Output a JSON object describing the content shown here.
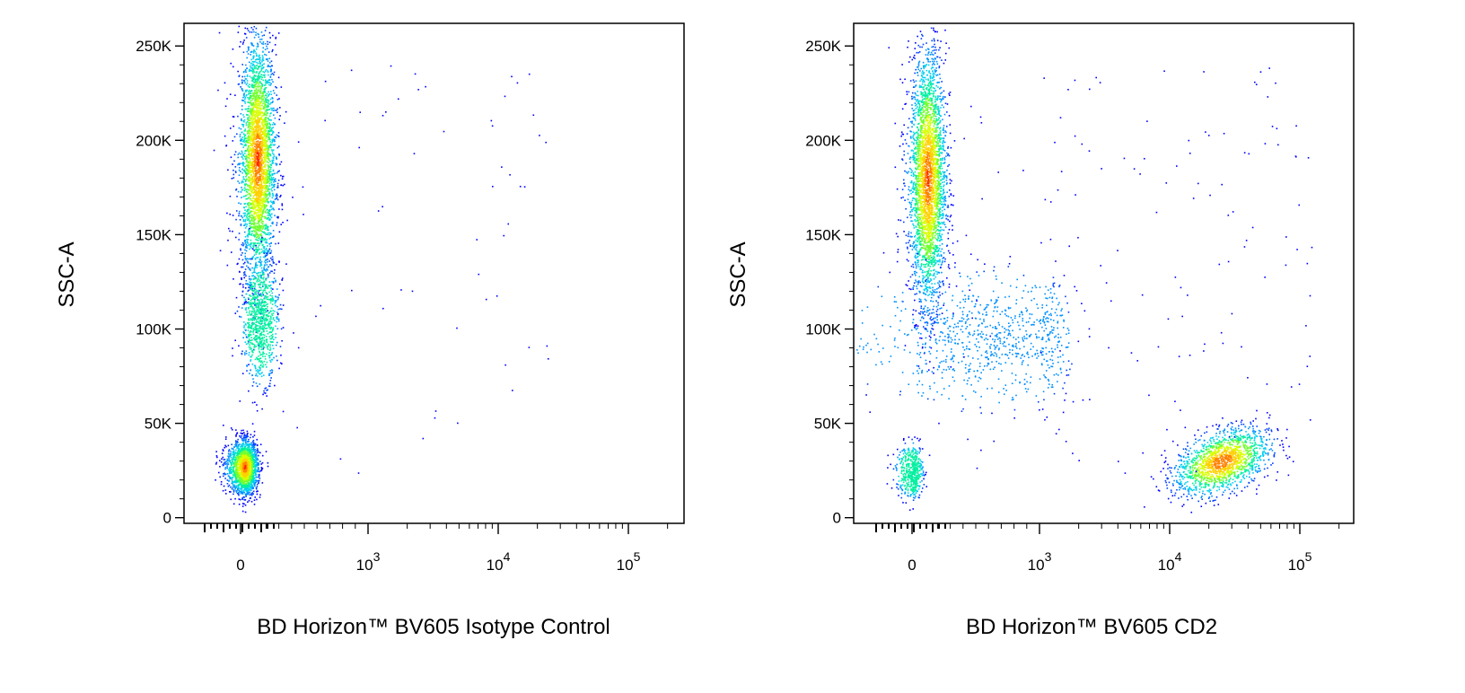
{
  "chart_data": [
    {
      "type": "scatter",
      "xlabel": "BD Horizon™ BV605 Isotype Control",
      "ylabel": "SSC-A",
      "x_scale": "biexponential",
      "x_tick_labels": [
        {
          "base": "0",
          "exp": ""
        },
        {
          "base": "10",
          "exp": "3"
        },
        {
          "base": "10",
          "exp": "4"
        },
        {
          "base": "10",
          "exp": "5"
        }
      ],
      "y_tick_labels": [
        "0",
        "50K",
        "100K",
        "150K",
        "200K",
        "250K"
      ],
      "y_ticks": [
        0,
        50000,
        100000,
        150000,
        200000,
        250000
      ],
      "ylim": [
        -3000,
        262000
      ],
      "grid": false,
      "legend": "none",
      "density_colormap": [
        "#0000ff",
        "#00a0ff",
        "#00e8c0",
        "#7fff00",
        "#ffee00",
        "#ff8800",
        "#ff0000"
      ],
      "populations": [
        {
          "x_center": 130,
          "x_spread": 70,
          "y_center": 190000,
          "y_spread": 32000,
          "relative_count": 3200,
          "peak": "red"
        },
        {
          "x_center": 150,
          "x_spread": 70,
          "y_center": 105000,
          "y_spread": 16000,
          "relative_count": 900,
          "peak": "cyan"
        },
        {
          "x_center": 30,
          "x_spread": 50,
          "y_center": 27000,
          "y_spread": 7000,
          "relative_count": 2000,
          "peak": "red"
        }
      ]
    },
    {
      "type": "scatter",
      "xlabel": "BD Horizon™ BV605 CD2",
      "ylabel": "SSC-A",
      "x_scale": "biexponential",
      "x_tick_labels": [
        {
          "base": "0",
          "exp": ""
        },
        {
          "base": "10",
          "exp": "3"
        },
        {
          "base": "10",
          "exp": "4"
        },
        {
          "base": "10",
          "exp": "5"
        }
      ],
      "y_tick_labels": [
        "0",
        "50K",
        "100K",
        "150K",
        "200K",
        "250K"
      ],
      "y_ticks": [
        0,
        50000,
        100000,
        150000,
        200000,
        250000
      ],
      "ylim": [
        -3000,
        262000
      ],
      "grid": false,
      "legend": "none",
      "density_colormap": [
        "#0000ff",
        "#00a0ff",
        "#00e8c0",
        "#7fff00",
        "#ffee00",
        "#ff8800",
        "#ff0000"
      ],
      "populations": [
        {
          "x_center": 120,
          "x_spread": 70,
          "y_center": 180000,
          "y_spread": 33000,
          "relative_count": 3200,
          "peak": "red"
        },
        {
          "x_center": 600,
          "x_spread": 500,
          "y_center": 95000,
          "y_spread": 16000,
          "relative_count": 900,
          "peak": "blue"
        },
        {
          "x_center": 0,
          "x_spread": 40,
          "y_center": 25000,
          "y_spread": 7000,
          "relative_count": 500,
          "peak": "cyan"
        },
        {
          "x_center": 25000,
          "x_spread": 12000,
          "y_center": 30000,
          "y_spread": 8000,
          "relative_count": 1600,
          "peak": "orange"
        }
      ]
    }
  ]
}
